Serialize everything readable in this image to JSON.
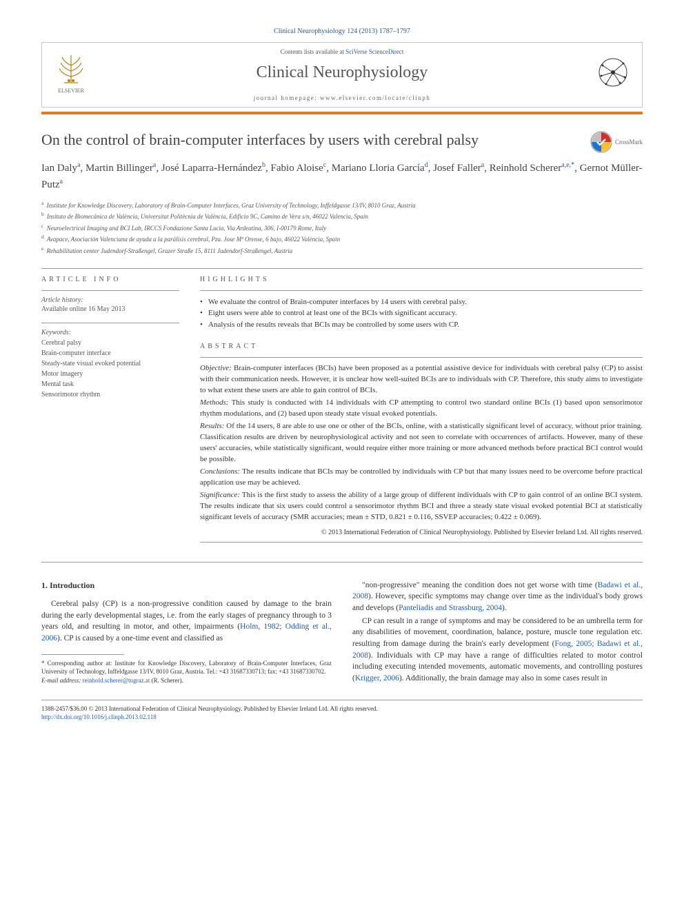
{
  "citation": "Clinical Neurophysiology 124 (2013) 1787–1797",
  "header": {
    "contents_prefix": "Contents lists available at ",
    "contents_link": "SciVerse ScienceDirect",
    "journal_name": "Clinical Neurophysiology",
    "homepage_prefix": "journal homepage: ",
    "homepage_url": "www.elsevier.com/locate/clinph",
    "elsevier_label": "ELSEVIER"
  },
  "article": {
    "title": "On the control of brain-computer interfaces by users with cerebral palsy",
    "crossmark_label": "CrossMark",
    "authors_html": "Ian Daly<sup>a</sup>, Martin Billinger<sup>a</sup>, José Laparra-Hernández<sup>b</sup>, Fabio Aloise<sup>c</sup>, Mariano Lloria García<sup>d</sup>, Josef Faller<sup>a</sup>, Reinhold Scherer<sup>a,e,*</sup>, Gernot Müller-Putz<sup>a</sup>",
    "affiliations": [
      {
        "sup": "a",
        "text": "Institute for Knowledge Discovery, Laboratory of Brain-Computer Interfaces, Graz University of Technology, Inffeldgasse 13/IV, 8010 Graz, Austria"
      },
      {
        "sup": "b",
        "text": "Insituto de Biomecánica de València, Universitat Politècnia de València, Edificio 9C, Camino de Vera s/n, 46022 Valencia, Spain"
      },
      {
        "sup": "c",
        "text": "Neuroelectrical Imaging and BCI Lab, IRCCS Fondazione Santa Lucia, Via Ardeatina, 306, I-00179 Rome, Italy"
      },
      {
        "sup": "d",
        "text": "Avapace, Asociación Valenciana de ayuda a la parálisis cerebral, Pza. Jose Mª Orense, 6 bajo, 46022 València, Spain"
      },
      {
        "sup": "e",
        "text": "Rehabilitation center Judendorf-Straßengel, Grazer Straße 15, 8111 Judendorf-Straßengel, Austria"
      }
    ]
  },
  "info": {
    "label": "ARTICLE INFO",
    "history_label": "Article history:",
    "history_text": "Available online 16 May 2013",
    "keywords_label": "Keywords:",
    "keywords": [
      "Cerebral palsy",
      "Brain-computer interface",
      "Steady-state visual evoked potential",
      "Motor imagery",
      "Mental task",
      "Sensorimotor rhythm"
    ]
  },
  "highlights": {
    "label": "HIGHLIGHTS",
    "items": [
      "We evaluate the control of Brain-computer interfaces by 14 users with cerebral palsy.",
      "Eight users were able to control at least one of the BCIs with significant accuracy.",
      "Analysis of the results reveals that BCIs may be controlled by some users with CP."
    ]
  },
  "abstract": {
    "label": "ABSTRACT",
    "parts": [
      {
        "heading": "Objective:",
        "text": "Brain-computer interfaces (BCIs) have been proposed as a potential assistive device for individuals with cerebral palsy (CP) to assist with their communication needs. However, it is unclear how well-suited BCIs are to individuals with CP. Therefore, this study aims to investigate to what extent these users are able to gain control of BCIs."
      },
      {
        "heading": "Methods:",
        "text": "This study is conducted with 14 individuals with CP attempting to control two standard online BCIs (1) based upon sensorimotor rhythm modulations, and (2) based upon steady state visual evoked potentials."
      },
      {
        "heading": "Results:",
        "text": "Of the 14 users, 8 are able to use one or other of the BCIs, online, with a statistically significant level of accuracy, without prior training. Classification results are driven by neurophysiological activity and not seen to correlate with occurrences of artifacts. However, many of these users' accuracies, while statistically significant, would require either more training or more advanced methods before practical BCI control would be possible."
      },
      {
        "heading": "Conclusions:",
        "text": "The results indicate that BCIs may be controlled by individuals with CP but that many issues need to be overcome before practical application use may be achieved."
      },
      {
        "heading": "Significance:",
        "text": "This is the first study to assess the ability of a large group of different individuals with CP to gain control of an online BCI system. The results indicate that six users could control a sensorimotor rhythm BCI and three a steady state visual evoked potential BCI at statistically significant levels of accuracy (SMR accuracies; mean ± STD, 0.821 ± 0.116, SSVEP accuracies; 0.422 ± 0.069)."
      }
    ],
    "copyright": "© 2013 International Federation of Clinical Neurophysiology. Published by Elsevier Ireland Ltd. All rights reserved."
  },
  "body": {
    "section_heading": "1. Introduction",
    "col1_p1": "Cerebral palsy (CP) is a non-progressive condition caused by damage to the brain during the early developmental stages, i.e. from the early stages of pregnancy through to 3 years old, and resulting in motor, and other, impairments (",
    "col1_ref1": "Holm, 1982; Odding et al., 2006",
    "col1_p1b": "). CP is caused by a one-time event and classified as",
    "col2_p1a": "\"non-progressive\" meaning the condition does not get worse with time (",
    "col2_ref1": "Badawi et al., 2008",
    "col2_p1b": "). However, specific symptoms may change over time as the individual's body grows and develops (",
    "col2_ref2": "Panteliadis and Strassburg, 2004",
    "col2_p1c": ").",
    "col2_p2a": "CP can result in a range of symptoms and may be considered to be an umbrella term for any disabilities of movement, coordination, balance, posture, muscle tone regulation etc. resulting from damage during the brain's early development (",
    "col2_ref3": "Fong, 2005; Badawi et al., 2008",
    "col2_p2b": "). Individuals with CP may have a range of difficulties related to motor control including executing intended movements, automatic movements, and controlling postures (",
    "col2_ref4": "Krigger, 2006",
    "col2_p2c": "). Additionally, the brain damage may also in some cases result in"
  },
  "footnote": {
    "corr": "* Corresponding author at: Institute for Knowledge Discovery, Laboratory of Brain-Computer Interfaces, Graz University of Technology, Inffeldgasse 13/IV, 8010 Graz, Austria. Tel.: +43 31687330713; fax: +43 31687330702.",
    "email_label": "E-mail address:",
    "email": "reinhold.scherer@tugraz.at",
    "email_suffix": "(R. Scherer)."
  },
  "footer": {
    "line1": "1388-2457/$36.00 © 2013 International Federation of Clinical Neurophysiology. Published by Elsevier Ireland Ltd. All rights reserved.",
    "doi": "http://dx.doi.org/10.1016/j.clinph.2013.02.118"
  },
  "colors": {
    "link": "#1a5fb4",
    "accent": "#e87722",
    "text": "#333333",
    "muted": "#666666",
    "border": "#c8c8c8"
  }
}
